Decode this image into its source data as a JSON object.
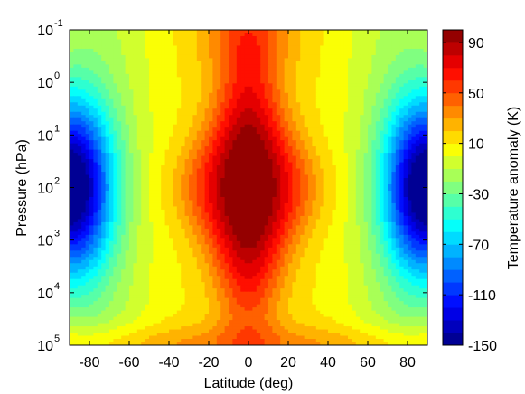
{
  "chart_data": {
    "type": "heatmap",
    "x_label": "Latitude (deg)",
    "y_label": "Pressure (hPa)",
    "colorbar_label": "Temperature anomaly (K)",
    "x_ticks": [
      "-80",
      "-60",
      "-40",
      "-20",
      "0",
      "20",
      "40",
      "60",
      "80"
    ],
    "x_tick_values": [
      -80,
      -60,
      -40,
      -20,
      0,
      20,
      40,
      60,
      80
    ],
    "xlim": [
      -90,
      90
    ],
    "y_scale": "log",
    "ylim": [
      0.1,
      100000
    ],
    "y_tick_exponents": [
      "-1",
      "0",
      "1",
      "2",
      "3",
      "4",
      "5"
    ],
    "y_tick_base": "10",
    "colorbar_ticks": [
      "90",
      "50",
      "10",
      "-30",
      "-70",
      "-110",
      "-150"
    ],
    "colorbar_tick_values": [
      90,
      50,
      10,
      -30,
      -70,
      -110,
      -150
    ],
    "colorbar_range": [
      -150,
      100
    ],
    "colormap": "jet",
    "contour_levels": 25,
    "features": {
      "equatorial_maximum_K": 90,
      "polar_minimum_K": -150,
      "polar_minimum_pressure_hPa": 100
    }
  }
}
